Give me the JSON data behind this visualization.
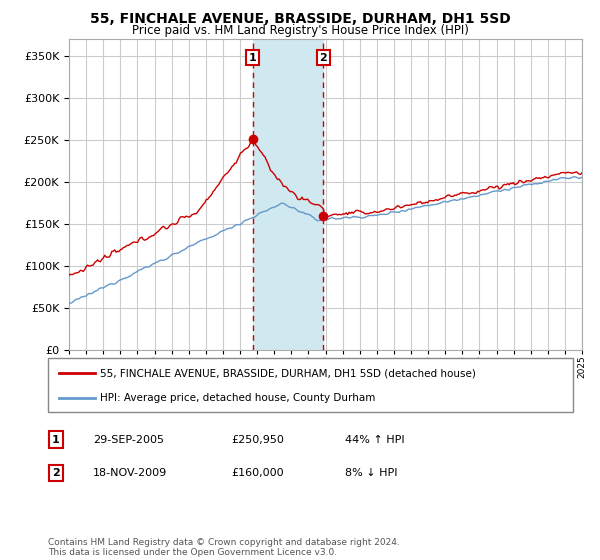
{
  "title": "55, FINCHALE AVENUE, BRASSIDE, DURHAM, DH1 5SD",
  "subtitle": "Price paid vs. HM Land Registry's House Price Index (HPI)",
  "legend_line1": "55, FINCHALE AVENUE, BRASSIDE, DURHAM, DH1 5SD (detached house)",
  "legend_line2": "HPI: Average price, detached house, County Durham",
  "sale1_label": "1",
  "sale1_date": "29-SEP-2005",
  "sale1_price": "£250,950",
  "sale1_hpi": "44% ↑ HPI",
  "sale1_year": 2005.75,
  "sale1_value": 250950,
  "sale2_label": "2",
  "sale2_date": "18-NOV-2009",
  "sale2_price": "£160,000",
  "sale2_hpi": "8% ↓ HPI",
  "sale2_year": 2009.88,
  "sale2_value": 160000,
  "red_color": "#cc0000",
  "blue_color": "#6699cc",
  "highlight_color": "#d0e8f0",
  "background_color": "#ffffff",
  "grid_color": "#cccccc",
  "footnote": "Contains HM Land Registry data © Crown copyright and database right 2024.\nThis data is licensed under the Open Government Licence v3.0.",
  "ylim": [
    0,
    370000
  ],
  "yticks": [
    0,
    50000,
    100000,
    150000,
    200000,
    250000,
    300000,
    350000
  ],
  "xstart": 1995,
  "xend": 2025
}
